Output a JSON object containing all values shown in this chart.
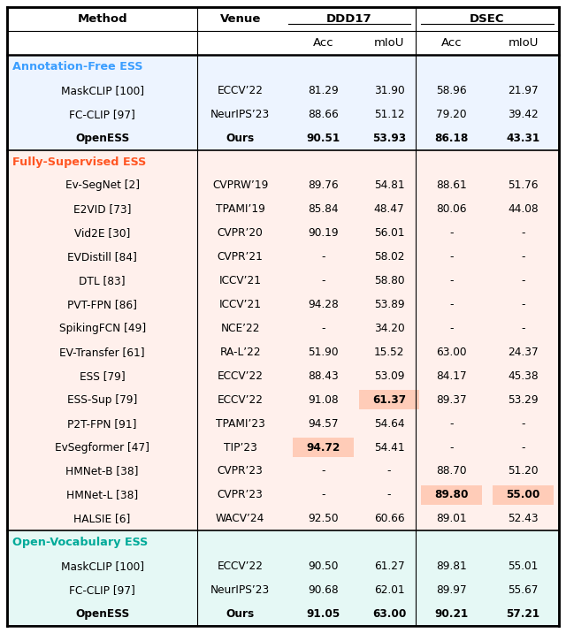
{
  "sections": [
    {
      "label": "Annotation-Free ESS",
      "label_color": "#3B9EFF",
      "bg_color": "#EDF4FF",
      "rows": [
        {
          "method": "MaskCLIP [100]",
          "venue": "ECCV’22",
          "ddd17_acc": "81.29",
          "ddd17_miou": "31.90",
          "dsec_acc": "58.96",
          "dsec_miou": "21.97",
          "bold": [],
          "highlight": []
        },
        {
          "method": "FC-CLIP [97]",
          "venue": "NeurIPS’23",
          "ddd17_acc": "88.66",
          "ddd17_miou": "51.12",
          "dsec_acc": "79.20",
          "dsec_miou": "39.42",
          "bold": [],
          "highlight": []
        },
        {
          "method": "OpenESS",
          "venue": "Ours",
          "ddd17_acc": "90.51",
          "ddd17_miou": "53.93",
          "dsec_acc": "86.18",
          "dsec_miou": "43.31",
          "bold": [
            "method",
            "venue",
            "ddd17_acc",
            "ddd17_miou",
            "dsec_acc",
            "dsec_miou"
          ],
          "highlight": []
        }
      ]
    },
    {
      "label": "Fully-Supervised ESS",
      "label_color": "#FF5522",
      "bg_color": "#FFF0EC",
      "rows": [
        {
          "method": "Ev-SegNet [2]",
          "venue": "CVPRW’19",
          "ddd17_acc": "89.76",
          "ddd17_miou": "54.81",
          "dsec_acc": "88.61",
          "dsec_miou": "51.76",
          "bold": [],
          "highlight": []
        },
        {
          "method": "E2VID [73]",
          "venue": "TPAMI’19",
          "ddd17_acc": "85.84",
          "ddd17_miou": "48.47",
          "dsec_acc": "80.06",
          "dsec_miou": "44.08",
          "bold": [],
          "highlight": []
        },
        {
          "method": "Vid2E [30]",
          "venue": "CVPR’20",
          "ddd17_acc": "90.19",
          "ddd17_miou": "56.01",
          "dsec_acc": "-",
          "dsec_miou": "-",
          "bold": [],
          "highlight": []
        },
        {
          "method": "EVDistill [84]",
          "venue": "CVPR’21",
          "ddd17_acc": "-",
          "ddd17_miou": "58.02",
          "dsec_acc": "-",
          "dsec_miou": "-",
          "bold": [],
          "highlight": []
        },
        {
          "method": "DTL [83]",
          "venue": "ICCV’21",
          "ddd17_acc": "-",
          "ddd17_miou": "58.80",
          "dsec_acc": "-",
          "dsec_miou": "-",
          "bold": [],
          "highlight": []
        },
        {
          "method": "PVT-FPN [86]",
          "venue": "ICCV’21",
          "ddd17_acc": "94.28",
          "ddd17_miou": "53.89",
          "dsec_acc": "-",
          "dsec_miou": "-",
          "bold": [],
          "highlight": []
        },
        {
          "method": "SpikingFCN [49]",
          "venue": "NCE’22",
          "ddd17_acc": "-",
          "ddd17_miou": "34.20",
          "dsec_acc": "-",
          "dsec_miou": "-",
          "bold": [],
          "highlight": []
        },
        {
          "method": "EV-Transfer [61]",
          "venue": "RA-L’22",
          "ddd17_acc": "51.90",
          "ddd17_miou": "15.52",
          "dsec_acc": "63.00",
          "dsec_miou": "24.37",
          "bold": [],
          "highlight": []
        },
        {
          "method": "ESS [79]",
          "venue": "ECCV’22",
          "ddd17_acc": "88.43",
          "ddd17_miou": "53.09",
          "dsec_acc": "84.17",
          "dsec_miou": "45.38",
          "bold": [],
          "highlight": []
        },
        {
          "method": "ESS-Sup [79]",
          "venue": "ECCV’22",
          "ddd17_acc": "91.08",
          "ddd17_miou": "61.37",
          "dsec_acc": "89.37",
          "dsec_miou": "53.29",
          "bold": [
            "ddd17_miou"
          ],
          "highlight": [
            "ddd17_miou"
          ]
        },
        {
          "method": "P2T-FPN [91]",
          "venue": "TPAMI’23",
          "ddd17_acc": "94.57",
          "ddd17_miou": "54.64",
          "dsec_acc": "-",
          "dsec_miou": "-",
          "bold": [],
          "highlight": []
        },
        {
          "method": "EvSegformer [47]",
          "venue": "TIP’23",
          "ddd17_acc": "94.72",
          "ddd17_miou": "54.41",
          "dsec_acc": "-",
          "dsec_miou": "-",
          "bold": [
            "ddd17_acc"
          ],
          "highlight": [
            "ddd17_acc"
          ]
        },
        {
          "method": "HMNet-B [38]",
          "venue": "CVPR’23",
          "ddd17_acc": "-",
          "ddd17_miou": "-",
          "dsec_acc": "88.70",
          "dsec_miou": "51.20",
          "bold": [],
          "highlight": []
        },
        {
          "method": "HMNet-L [38]",
          "venue": "CVPR’23",
          "ddd17_acc": "-",
          "ddd17_miou": "-",
          "dsec_acc": "89.80",
          "dsec_miou": "55.00",
          "bold": [
            "dsec_acc",
            "dsec_miou"
          ],
          "highlight": [
            "dsec_acc",
            "dsec_miou"
          ]
        },
        {
          "method": "HALSIE [6]",
          "venue": "WACV’24",
          "ddd17_acc": "92.50",
          "ddd17_miou": "60.66",
          "dsec_acc": "89.01",
          "dsec_miou": "52.43",
          "bold": [],
          "highlight": []
        }
      ]
    },
    {
      "label": "Open-Vocabulary ESS",
      "label_color": "#00AA99",
      "bg_color": "#E5F8F5",
      "rows": [
        {
          "method": "MaskCLIP [100]",
          "venue": "ECCV’22",
          "ddd17_acc": "90.50",
          "ddd17_miou": "61.27",
          "dsec_acc": "89.81",
          "dsec_miou": "55.01",
          "bold": [],
          "highlight": []
        },
        {
          "method": "FC-CLIP [97]",
          "venue": "NeurIPS’23",
          "ddd17_acc": "90.68",
          "ddd17_miou": "62.01",
          "dsec_acc": "89.97",
          "dsec_miou": "55.67",
          "bold": [],
          "highlight": []
        },
        {
          "method": "OpenESS",
          "venue": "Ours",
          "ddd17_acc": "91.05",
          "ddd17_miou": "63.00",
          "dsec_acc": "90.21",
          "dsec_miou": "57.21",
          "bold": [
            "method",
            "venue",
            "ddd17_acc",
            "ddd17_miou",
            "dsec_acc",
            "dsec_miou"
          ],
          "highlight": []
        }
      ]
    }
  ],
  "figsize": [
    6.4,
    7.16
  ],
  "dpi": 100,
  "highlight_color": "#FFCCB8"
}
